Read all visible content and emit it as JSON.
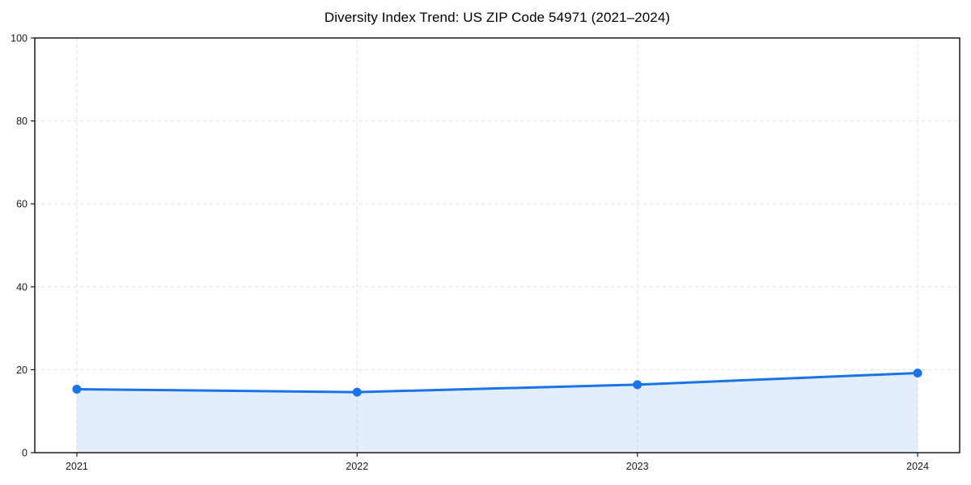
{
  "chart_data": {
    "type": "area",
    "title": "Diversity Index Trend: US ZIP Code 54971 (2021–2024)",
    "xlabel": "",
    "ylabel": "",
    "x": [
      2021,
      2022,
      2023,
      2024
    ],
    "series": [
      {
        "name": "Diversity Index",
        "values": [
          15.3,
          14.6,
          16.4,
          19.2
        ]
      }
    ],
    "xticks": [
      2021,
      2022,
      2023,
      2024
    ],
    "yticks": [
      0,
      20,
      40,
      60,
      80,
      100
    ],
    "ylim": [
      0,
      100
    ],
    "x_range": [
      2020.85,
      2024.15
    ],
    "grid": "dashed",
    "legend": "none",
    "colors": {
      "line": "#1a73e8",
      "marker": "#1a73e8",
      "fill": "rgba(26, 115, 232, 0.12)",
      "grid": "#dedede",
      "frame": "#1a1a1a",
      "tick_text": "#1a1a1a"
    }
  }
}
